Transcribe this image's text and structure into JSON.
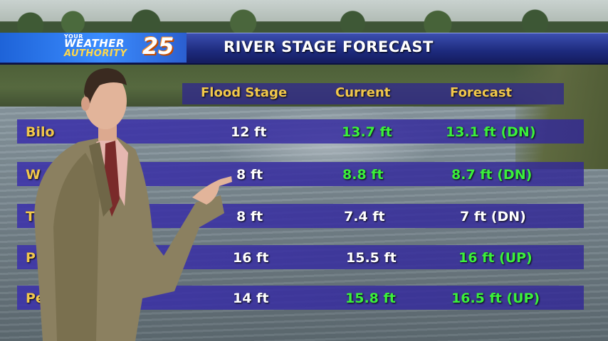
{
  "logo": {
    "line1": "YOUR",
    "line2": "WEATHER",
    "line3": "AUTHORITY",
    "number": "25"
  },
  "title": "RIVER STAGE FORECAST",
  "columns": [
    "Flood Stage",
    "Current",
    "Forecast"
  ],
  "rows": [
    {
      "location": "Bilo",
      "flood_stage": "12 ft",
      "current": "13.7 ft",
      "forecast": "13.1 ft (DN)",
      "current_color": "green",
      "forecast_color": "green"
    },
    {
      "location": "W",
      "flood_stage": "8 ft",
      "current": "8.8 ft",
      "forecast": "8.7 ft (DN)",
      "current_color": "green",
      "forecast_color": "green"
    },
    {
      "location": "T",
      "flood_stage": "8 ft",
      "current": "7.4 ft",
      "forecast": "7 ft (DN)",
      "current_color": "white",
      "forecast_color": "white"
    },
    {
      "location": "P",
      "flood_stage": "16 ft",
      "current": "15.5 ft",
      "forecast": "16 ft (UP)",
      "current_color": "white",
      "forecast_color": "green"
    },
    {
      "location": "Pe",
      "flood_stage": "14 ft",
      "current": "15.8 ft",
      "forecast": "16.5 ft (UP)",
      "current_color": "green",
      "forecast_color": "green"
    }
  ],
  "colors": {
    "header_text": "#f2c84b",
    "green_text": "#3bf03b",
    "row_bar": "#3c32aa",
    "banner": "#1d2a7d"
  }
}
